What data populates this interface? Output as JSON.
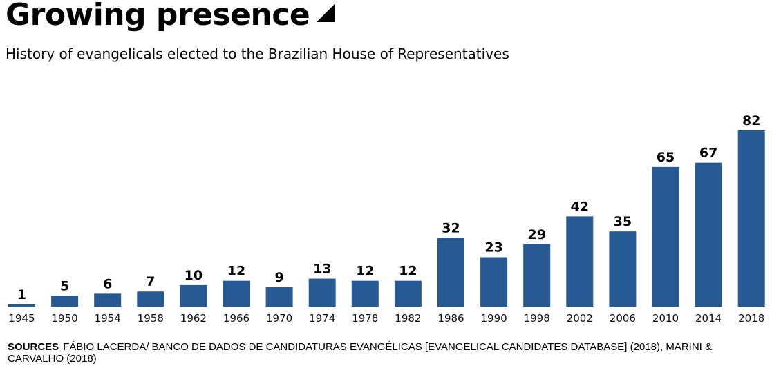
{
  "header": {
    "title": "Growing presence",
    "title_icon": "triangle-marker-icon",
    "subtitle": "History of evangelicals elected to the Brazilian House of Representatives"
  },
  "footer": {
    "sources_label": "SOURCES",
    "sources_text": "FÁBIO LACERDA/ BANCO DE DADOS DE CANDIDATURAS EVANGÉLICAS [EVANGELICAL CANDIDATES DATABASE] (2018), MARINI & CARVALHO (2018)"
  },
  "colors": {
    "bar": "#275A92",
    "text": "#000000"
  },
  "chart_data": {
    "type": "bar",
    "title": "Growing presence",
    "subtitle": "History of evangelicals elected to the Brazilian House of Representatives",
    "xlabel": "",
    "ylabel": "",
    "categories": [
      "1945",
      "1950",
      "1954",
      "1958",
      "1962",
      "1966",
      "1970",
      "1974",
      "1978",
      "1982",
      "1986",
      "1990",
      "1998",
      "2002",
      "2006",
      "2010",
      "2014",
      "2018"
    ],
    "values": [
      1,
      5,
      6,
      7,
      10,
      12,
      9,
      13,
      12,
      12,
      32,
      23,
      29,
      42,
      35,
      65,
      67,
      82
    ],
    "ylim": [
      0,
      82
    ],
    "grid": false,
    "legend": "none",
    "data_labels": true
  }
}
